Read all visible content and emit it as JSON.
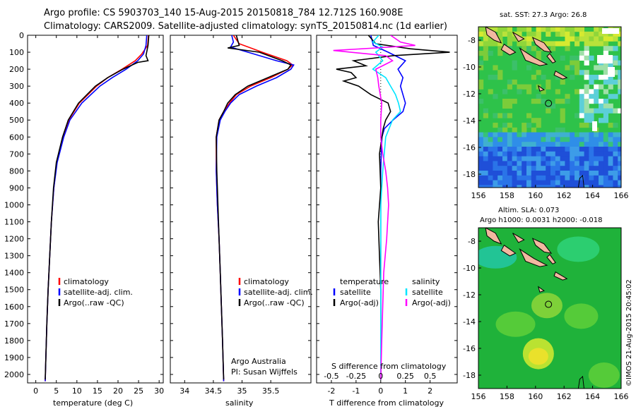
{
  "header": {
    "title_line1": "Argo profile: CS 5903703_140 15-Aug-2015 20150818_784 12.712S 160.908E",
    "title_line2": "Climatology: CARS2009. Satellite-adjusted climatology: synTS_20150814.nc (1d earlier)"
  },
  "credit": "©IMOS 21-Aug-2015 20:45:02",
  "colors": {
    "climatology": "#ff0000",
    "satellite": "#0000ff",
    "argo": "#000000",
    "salinity_satellite": "#00e5ff",
    "salinity_argo": "#ff00ff",
    "land": "#f2b8a0"
  },
  "chart_data": [
    {
      "id": "temperature",
      "type": "line",
      "xlabel": "temperature (deg C)",
      "ylabel": "",
      "xlim": [
        -2,
        31
      ],
      "ylim": [
        2050,
        0
      ],
      "xticks": [
        0,
        5,
        10,
        15,
        20,
        25,
        30
      ],
      "yticks": [
        0,
        100,
        200,
        300,
        400,
        500,
        600,
        700,
        800,
        900,
        1000,
        1100,
        1200,
        1300,
        1400,
        1500,
        1600,
        1700,
        1800,
        1900,
        2000
      ],
      "legend": [
        "climatology",
        "satellite-adj. clim.",
        "Argo(..raw -QC)"
      ],
      "series": [
        {
          "name": "climatology",
          "depth": [
            0,
            60,
            110,
            150,
            200,
            250,
            300,
            400,
            500,
            600,
            750,
            900,
            1100,
            1300,
            1500,
            1700,
            1900,
            2040
          ],
          "values": [
            27.4,
            27.2,
            25.8,
            24.2,
            21.0,
            17.5,
            14.8,
            10.6,
            8.0,
            6.6,
            5.1,
            4.4,
            3.8,
            3.4,
            3.0,
            2.7,
            2.45,
            2.3
          ]
        },
        {
          "name": "satellite-adj. clim.",
          "depth": [
            0,
            60,
            110,
            150,
            200,
            250,
            300,
            400,
            500,
            600,
            750,
            900,
            1100,
            1300,
            1500,
            1700,
            1900,
            2040
          ],
          "values": [
            27.0,
            26.8,
            26.2,
            24.8,
            22.0,
            18.6,
            15.6,
            11.2,
            8.3,
            6.8,
            5.2,
            4.4,
            3.8,
            3.4,
            3.0,
            2.7,
            2.45,
            2.3
          ]
        },
        {
          "name": "Argo(..raw -QC)",
          "depth": [
            0,
            60,
            120,
            150,
            160,
            200,
            250,
            300,
            400,
            500,
            600,
            750,
            900,
            1100,
            1300,
            1500,
            1700,
            1900,
            2030
          ],
          "values": [
            27.5,
            27.3,
            26.8,
            27.3,
            24.8,
            21.2,
            17.5,
            14.5,
            10.4,
            7.9,
            6.5,
            5.0,
            4.3,
            3.8,
            3.4,
            3.0,
            2.7,
            2.45,
            2.3
          ]
        }
      ]
    },
    {
      "id": "salinity",
      "type": "line",
      "xlabel": "salinity",
      "ylabel": "",
      "xlim": [
        33.75,
        36.2
      ],
      "ylim": [
        2050,
        0
      ],
      "xticks": [
        34,
        34.5,
        35,
        35.5
      ],
      "legend": [
        "climatology",
        "satellite-adj. clim.",
        "Argo(..raw -QC)"
      ],
      "annotation": [
        "Argo Australia",
        "PI: Susan Wijffels"
      ],
      "series": [
        {
          "name": "climatology",
          "depth": [
            0,
            50,
            100,
            150,
            175,
            200,
            250,
            300,
            350,
            400,
            450,
            500,
            600,
            800,
            1000,
            1200,
            1400,
            1600,
            1800,
            2040
          ],
          "values": [
            34.85,
            34.95,
            35.35,
            35.78,
            35.88,
            35.8,
            35.5,
            35.15,
            34.9,
            34.78,
            34.68,
            34.6,
            34.55,
            34.55,
            34.57,
            34.6,
            34.62,
            34.64,
            34.66,
            34.68
          ]
        },
        {
          "name": "satellite-adj. clim.",
          "depth": [
            0,
            40,
            70,
            100,
            150,
            175,
            200,
            250,
            300,
            350,
            400,
            450,
            500,
            600,
            800,
            1000,
            1200,
            1400,
            1600,
            1800,
            2040
          ],
          "values": [
            34.82,
            34.85,
            34.8,
            35.1,
            35.6,
            35.9,
            35.85,
            35.6,
            35.25,
            34.95,
            34.8,
            34.7,
            34.62,
            34.56,
            34.55,
            34.57,
            34.6,
            34.62,
            34.64,
            34.66,
            34.68
          ]
        },
        {
          "name": "Argo(..raw -QC)",
          "depth": [
            0,
            60,
            75,
            100,
            150,
            175,
            200,
            250,
            300,
            350,
            400,
            450,
            500,
            600,
            800,
            1000,
            1200,
            1400,
            1600,
            1800,
            2030
          ],
          "values": [
            34.9,
            34.95,
            34.75,
            35.3,
            35.7,
            35.85,
            35.8,
            35.45,
            35.1,
            34.88,
            34.75,
            34.68,
            34.6,
            34.55,
            34.56,
            34.58,
            34.6,
            34.62,
            34.64,
            34.66,
            34.68
          ]
        }
      ]
    },
    {
      "id": "differences",
      "type": "line",
      "xlabel": "T difference from climatology",
      "xlabel_top": "S difference from climatology",
      "xlim": [
        -2.6,
        3.1
      ],
      "ylim": [
        2050,
        0
      ],
      "xticks": [
        -2,
        -1,
        0,
        1,
        2
      ],
      "xticks_top": [
        -0.5,
        -0.25,
        0,
        0.25,
        0.5
      ],
      "legend_temperature_title": "temperature",
      "legend_salinity_title": "salinity",
      "legend_temperature": [
        "satellite",
        "Argo(-adj)"
      ],
      "legend_salinity": [
        "satellite",
        "Argo(-adj)"
      ],
      "series": [
        {
          "name": "temperature satellite",
          "depth": [
            0,
            60,
            100,
            150,
            200,
            250,
            300,
            350,
            400,
            450,
            500,
            550,
            600,
            700,
            800,
            1000,
            1200,
            1500,
            1800,
            2030
          ],
          "values": [
            -0.4,
            -0.3,
            0.3,
            1.0,
            0.7,
            0.9,
            0.8,
            0.9,
            1.0,
            0.9,
            0.5,
            0.15,
            0.05,
            0.02,
            0.0,
            0.0,
            0.0,
            0.0,
            0.0,
            0.0
          ]
        },
        {
          "name": "temperature Argo(-adj)",
          "depth": [
            0,
            50,
            80,
            100,
            120,
            150,
            180,
            200,
            220,
            250,
            270,
            300,
            350,
            400,
            450,
            500,
            550,
            600,
            700,
            900,
            1100,
            1300,
            1500,
            1800,
            2030
          ],
          "values": [
            -0.5,
            -0.2,
            1.2,
            2.8,
            0.5,
            -1.1,
            -0.6,
            -1.8,
            -1.2,
            -1.0,
            -1.5,
            -0.9,
            -0.4,
            0.3,
            0.4,
            0.2,
            0.1,
            0.05,
            -0.05,
            0.0,
            -0.1,
            -0.05,
            0.0,
            0.0,
            0.0
          ]
        },
        {
          "name": "salinity satellite",
          "depth": [
            0,
            40,
            70,
            100,
            150,
            200,
            250,
            300,
            350,
            400,
            450,
            500,
            600,
            800,
            1000,
            1300,
            1600,
            1900,
            2030
          ],
          "values": [
            -0.02,
            -0.08,
            0.02,
            -0.05,
            0.02,
            -0.08,
            0.05,
            0.1,
            0.15,
            0.18,
            0.2,
            0.12,
            0.05,
            0.02,
            0.0,
            0.0,
            0.0,
            0.0,
            0.0
          ]
        },
        {
          "name": "salinity Argo(-adj)",
          "depth": [
            0,
            40,
            60,
            75,
            90,
            120,
            150,
            200,
            250,
            300,
            400,
            500,
            600,
            700,
            800,
            900,
            1000,
            1200,
            1400,
            1600,
            1800,
            2030
          ],
          "values": [
            0.1,
            0.2,
            0.35,
            -0.05,
            -0.48,
            0.05,
            0.12,
            -0.05,
            -0.03,
            -0.02,
            0.01,
            0.0,
            0.0,
            0.02,
            0.05,
            0.07,
            0.08,
            0.06,
            0.03,
            0.02,
            0.01,
            0.0
          ]
        }
      ]
    },
    {
      "id": "sst_map",
      "type": "heatmap",
      "title": "sat. SST: 27.3 Argo: 26.8",
      "xlim": [
        156,
        166
      ],
      "ylim": [
        -19,
        -7
      ],
      "xticks": [
        156,
        158,
        160,
        162,
        164,
        166
      ],
      "yticks": [
        -8,
        -10,
        -12,
        -14,
        -16,
        -18
      ],
      "argo_position": {
        "lon": 160.908,
        "lat": -12.712
      }
    },
    {
      "id": "sla_map",
      "type": "heatmap",
      "title": "Altim. SLA: 0.073",
      "subtitle": "Argo h1000: 0.0031 h2000: -0.018",
      "xlim": [
        156,
        166
      ],
      "ylim": [
        -19,
        -7
      ],
      "xticks": [
        156,
        158,
        160,
        162,
        164,
        166
      ],
      "yticks": [
        -8,
        -10,
        -12,
        -14,
        -16,
        -18
      ],
      "argo_position": {
        "lon": 160.908,
        "lat": -12.712
      }
    }
  ]
}
